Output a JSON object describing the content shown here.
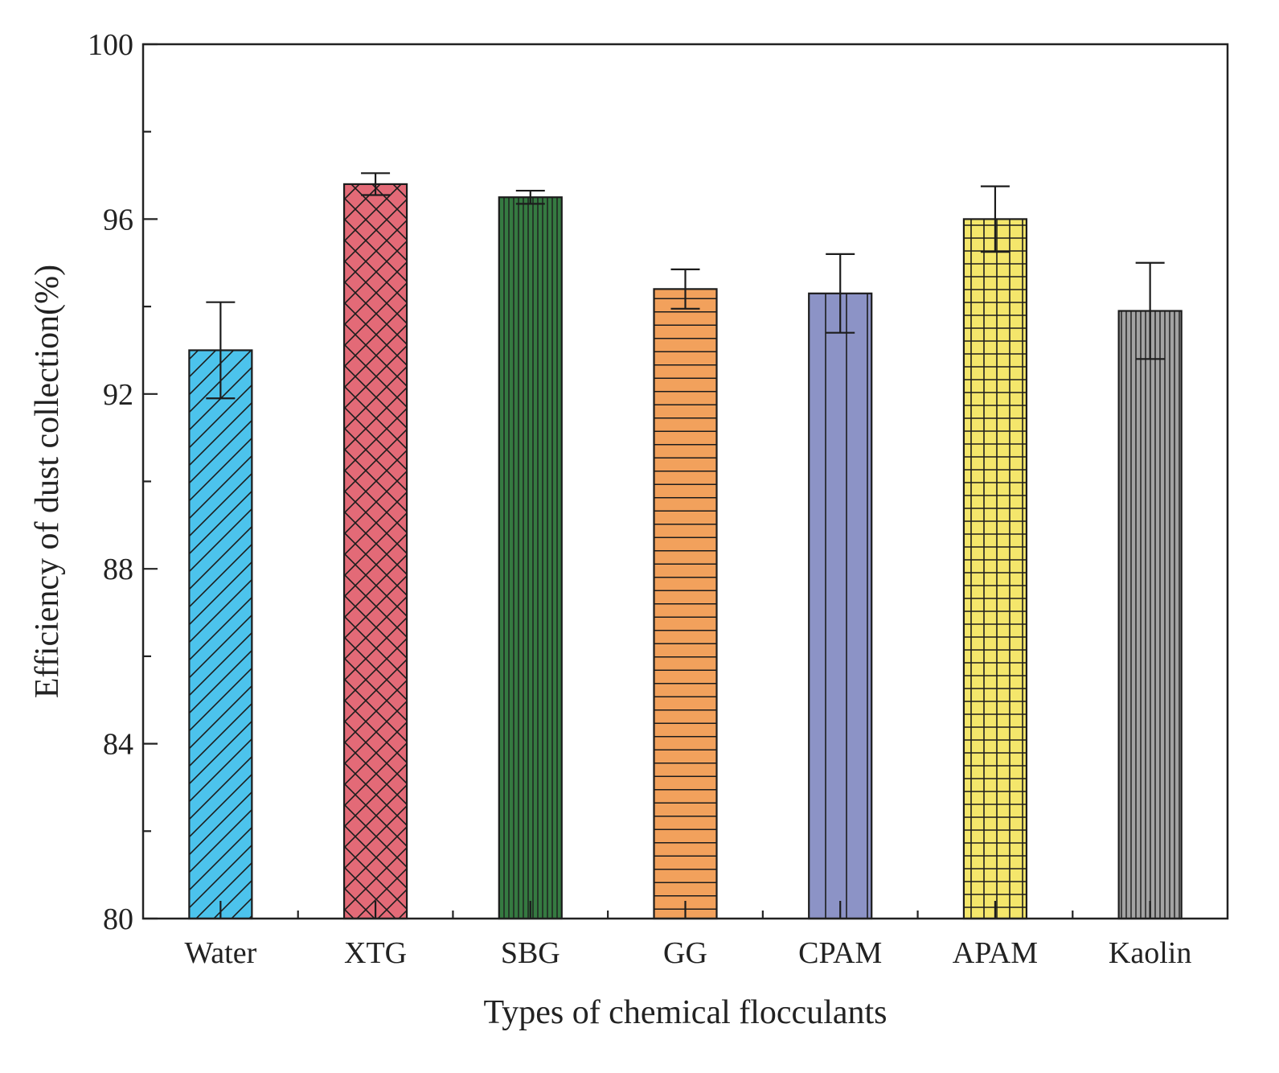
{
  "chart_data": {
    "type": "bar",
    "xlabel": "Types of chemical flocculants",
    "ylabel": "Efficiency of dust collection(%)",
    "ylim": [
      80,
      100
    ],
    "yticks": [
      80,
      84,
      88,
      92,
      96,
      100
    ],
    "grid": false,
    "categories": [
      "Water",
      "XTG",
      "SBG",
      "GG",
      "CPAM",
      "APAM",
      "Kaolin"
    ],
    "values": [
      93.0,
      96.8,
      96.5,
      94.4,
      94.3,
      96.0,
      93.9
    ],
    "errors": [
      1.1,
      0.25,
      0.15,
      0.45,
      0.9,
      0.75,
      1.1
    ],
    "colors": [
      "#4cc3ec",
      "#e36a77",
      "#357a41",
      "#f2a15c",
      "#8c93c6",
      "#f4e66b",
      "#a3a3a3"
    ],
    "patterns": [
      "diagonal",
      "crosshatch",
      "vertical-fine",
      "horizontal",
      "vertical-wide",
      "grid",
      "vertical-fine"
    ]
  }
}
